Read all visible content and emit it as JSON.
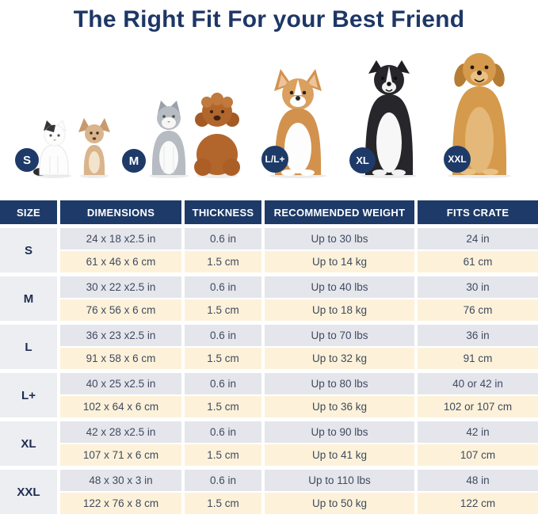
{
  "title": "The Right Fit For your Best Friend",
  "pets": [
    {
      "badge": "S",
      "label": "small white cat and chihuahua"
    },
    {
      "badge": "M",
      "label": "gray cat and poodle puppy"
    },
    {
      "badge": "L/L+",
      "label": "corgi"
    },
    {
      "badge": "XL",
      "label": "border collie"
    },
    {
      "badge": "XXL",
      "label": "golden retriever"
    }
  ],
  "colors": {
    "navy": "#1e3a68",
    "header_text": "#ffffff",
    "row_inches_bg": "#e4e6eb",
    "row_cm_bg": "#fdf2d9",
    "size_column_bg": "#eceef2",
    "cell_text": "#3f4960"
  },
  "table": {
    "columns": [
      "SIZE",
      "DIMENSIONS",
      "THICKNESS",
      "RECOMMENDED WEIGHT",
      "FITS CRATE"
    ],
    "groups": [
      {
        "size": "S",
        "rows": [
          [
            "24 x 18 x2.5 in",
            "0.6 in",
            "Up to 30 lbs",
            "24 in"
          ],
          [
            "61 x 46 x 6 cm",
            "1.5 cm",
            "Up to 14 kg",
            "61 cm"
          ]
        ]
      },
      {
        "size": "M",
        "rows": [
          [
            "30 x 22 x2.5 in",
            "0.6 in",
            "Up to 40 lbs",
            "30 in"
          ],
          [
            "76 x 56 x 6 cm",
            "1.5 cm",
            "Up to 18 kg",
            "76 cm"
          ]
        ]
      },
      {
        "size": "L",
        "rows": [
          [
            "36 x 23 x2.5 in",
            "0.6 in",
            "Up to 70 lbs",
            "36 in"
          ],
          [
            "91 x 58 x 6 cm",
            "1.5 cm",
            "Up to 32 kg",
            "91 cm"
          ]
        ]
      },
      {
        "size": "L+",
        "rows": [
          [
            "40 x 25 x2.5 in",
            "0.6 in",
            "Up to 80 lbs",
            "40 or 42 in"
          ],
          [
            "102 x 64 x 6 cm",
            "1.5 cm",
            "Up to 36 kg",
            "102 or 107 cm"
          ]
        ]
      },
      {
        "size": "XL",
        "rows": [
          [
            "42 x 28 x2.5 in",
            "0.6 in",
            "Up to 90 lbs",
            "42 in"
          ],
          [
            "107 x 71 x 6 cm",
            "1.5 cm",
            "Up to 41 kg",
            "107 cm"
          ]
        ]
      },
      {
        "size": "XXL",
        "rows": [
          [
            "48 x 30 x 3 in",
            "0.6 in",
            "Up to 110 lbs",
            "48 in"
          ],
          [
            "122 x 76 x 8 cm",
            "1.5 cm",
            "Up to 50 kg",
            "122 cm"
          ]
        ]
      }
    ]
  }
}
